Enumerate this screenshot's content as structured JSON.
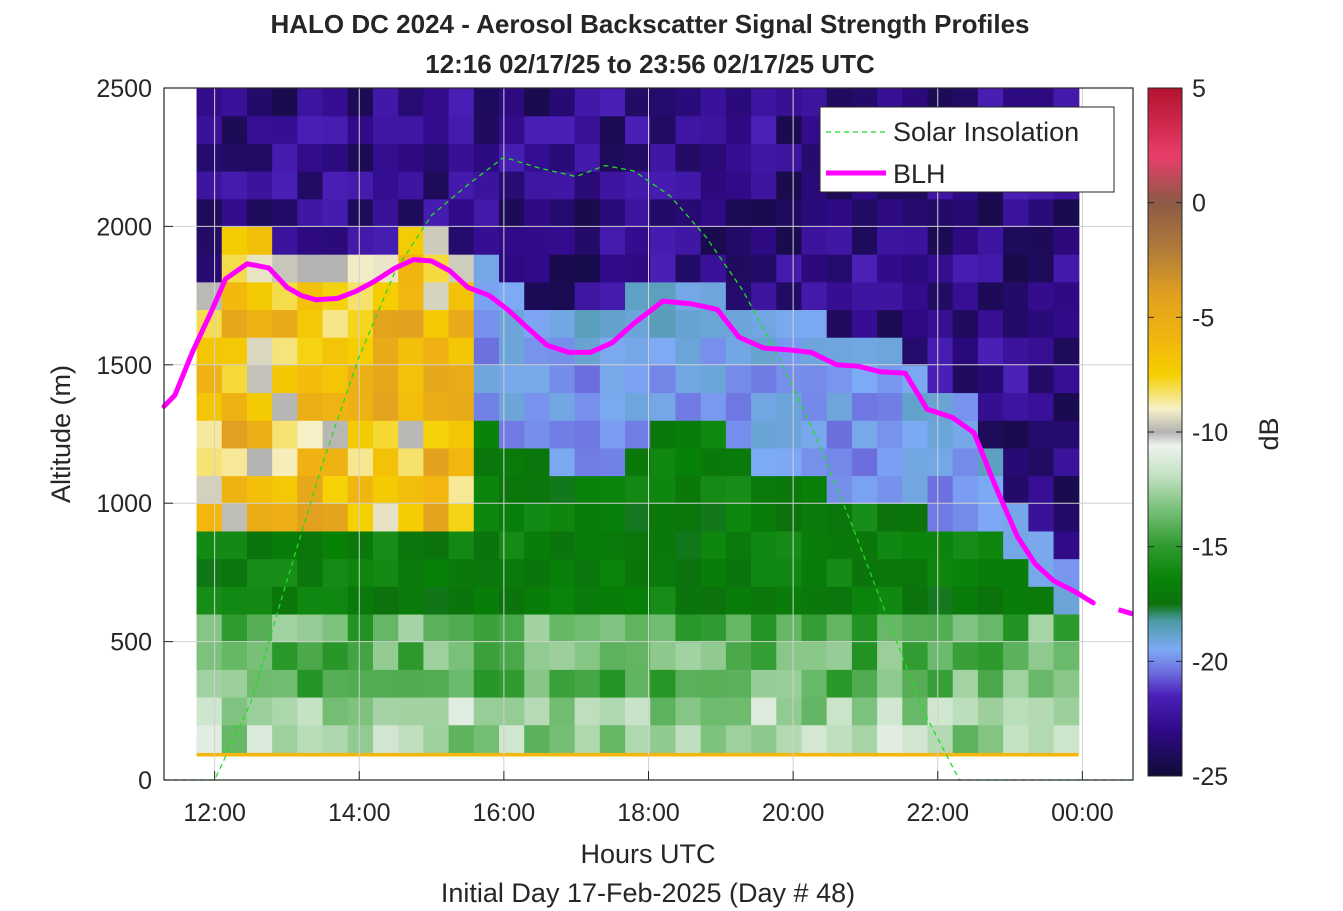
{
  "chart_data": {
    "type": "heatmap",
    "title": "HALO DC 2024 - Aerosol Backscatter Signal Strength Profiles",
    "subtitle": "12:16 02/17/25 to 23:56 02/17/25  UTC",
    "xlabel": "Hours UTC",
    "xlabel2": "Initial Day 17-Feb-2025 (Day # 48)",
    "ylabel": "Altitude (m)",
    "colorbar_label": "dB",
    "xlim": [
      11.3,
      24.7
    ],
    "ylim": [
      0,
      2500
    ],
    "clim": [
      -25,
      5
    ],
    "x_ticks": [
      {
        "value": 12,
        "label": "12:00"
      },
      {
        "value": 14,
        "label": "14:00"
      },
      {
        "value": 16,
        "label": "16:00"
      },
      {
        "value": 18,
        "label": "18:00"
      },
      {
        "value": 20,
        "label": "20:00"
      },
      {
        "value": 22,
        "label": "22:00"
      },
      {
        "value": 24,
        "label": "00:00"
      }
    ],
    "y_ticks": [
      {
        "value": 0,
        "label": "0"
      },
      {
        "value": 500,
        "label": "500"
      },
      {
        "value": 1000,
        "label": "1000"
      },
      {
        "value": 1500,
        "label": "1500"
      },
      {
        "value": 2000,
        "label": "2000"
      },
      {
        "value": 2500,
        "label": "2500"
      }
    ],
    "c_ticks": [
      {
        "value": 5,
        "label": "5"
      },
      {
        "value": 0,
        "label": "0"
      },
      {
        "value": -5,
        "label": "-5"
      },
      {
        "value": -10,
        "label": "-10"
      },
      {
        "value": -15,
        "label": "-15"
      },
      {
        "value": -20,
        "label": "-20"
      },
      {
        "value": -25,
        "label": "-25"
      }
    ],
    "grid": true,
    "legend_position": "top-right",
    "colormap": [
      {
        "v": 5,
        "c": "#b3122f"
      },
      {
        "v": 2,
        "c": "#e83e6a"
      },
      {
        "v": 0,
        "c": "#8c5a46"
      },
      {
        "v": -2,
        "c": "#b07a3a"
      },
      {
        "v": -4,
        "c": "#e0a020"
      },
      {
        "v": -6,
        "c": "#f2b60f"
      },
      {
        "v": -7.5,
        "c": "#f5d000"
      },
      {
        "v": -9,
        "c": "#f6f0c8"
      },
      {
        "v": -10,
        "c": "#b3b3b3"
      },
      {
        "v": -10.6,
        "c": "#eef3ee"
      },
      {
        "v": -12,
        "c": "#bfdfbf"
      },
      {
        "v": -13.5,
        "c": "#72bd72"
      },
      {
        "v": -15,
        "c": "#2e9a2e"
      },
      {
        "v": -16.5,
        "c": "#078207"
      },
      {
        "v": -17.5,
        "c": "#0c730c"
      },
      {
        "v": -18.2,
        "c": "#4a9aa2"
      },
      {
        "v": -19.5,
        "c": "#7eaaf6"
      },
      {
        "v": -20.5,
        "c": "#6b6bdd"
      },
      {
        "v": -21.5,
        "c": "#4a20b8"
      },
      {
        "v": -23,
        "c": "#300a88"
      },
      {
        "v": -25,
        "c": "#100c36"
      }
    ],
    "heatmap": {
      "x_start": 11.75,
      "x_end": 23.95,
      "y_start": 100,
      "y_end": 2500,
      "n_columns": 35,
      "n_rows": 24,
      "surface_band_db": -6,
      "note_values": "backscatter signal strength in dB, read approximately from the color scale"
    },
    "series": [
      {
        "name": "Solar Insolation",
        "style": "dashed",
        "color": "#22dd22",
        "x": [
          11.3,
          12.0,
          12.5,
          13.0,
          13.5,
          14.0,
          14.5,
          15.0,
          15.5,
          16.0,
          16.5,
          17.0,
          17.4,
          17.8,
          18.3,
          18.8,
          19.3,
          19.8,
          20.3,
          20.8,
          21.3,
          21.8,
          22.3,
          22.7,
          23.0,
          24.0,
          24.7
        ],
        "y": [
          0,
          0,
          280,
          720,
          1150,
          1530,
          1840,
          2040,
          2150,
          2250,
          2210,
          2180,
          2220,
          2200,
          2110,
          1960,
          1770,
          1530,
          1250,
          930,
          590,
          250,
          0,
          0,
          0,
          0,
          0
        ]
      },
      {
        "name": "BLH",
        "style": "solid",
        "color": "#ff00ff",
        "x": [
          11.3,
          11.45,
          11.7,
          11.95,
          12.15,
          12.45,
          12.75,
          13.0,
          13.2,
          13.4,
          13.7,
          13.95,
          14.2,
          14.5,
          14.75,
          15.0,
          15.25,
          15.5,
          15.8,
          16.05,
          16.3,
          16.6,
          16.9,
          17.2,
          17.5,
          17.8,
          18.2,
          18.6,
          18.95,
          19.25,
          19.6,
          19.9,
          20.25,
          20.6,
          20.9,
          21.2,
          21.55,
          21.85,
          22.2,
          22.5,
          22.8,
          23.1,
          23.35,
          23.6,
          23.9,
          24.15
        ],
        "y": [
          1350,
          1390,
          1550,
          1690,
          1810,
          1865,
          1850,
          1780,
          1750,
          1735,
          1740,
          1765,
          1800,
          1850,
          1880,
          1875,
          1840,
          1780,
          1750,
          1700,
          1640,
          1570,
          1545,
          1545,
          1580,
          1650,
          1730,
          1720,
          1700,
          1600,
          1560,
          1555,
          1545,
          1500,
          1495,
          1475,
          1470,
          1340,
          1310,
          1255,
          1060,
          880,
          780,
          720,
          680,
          640
        ],
        "gap_after_x": 24.15,
        "tail": {
          "x": [
            24.5,
            24.7
          ],
          "y": [
            615,
            600
          ]
        }
      }
    ]
  }
}
